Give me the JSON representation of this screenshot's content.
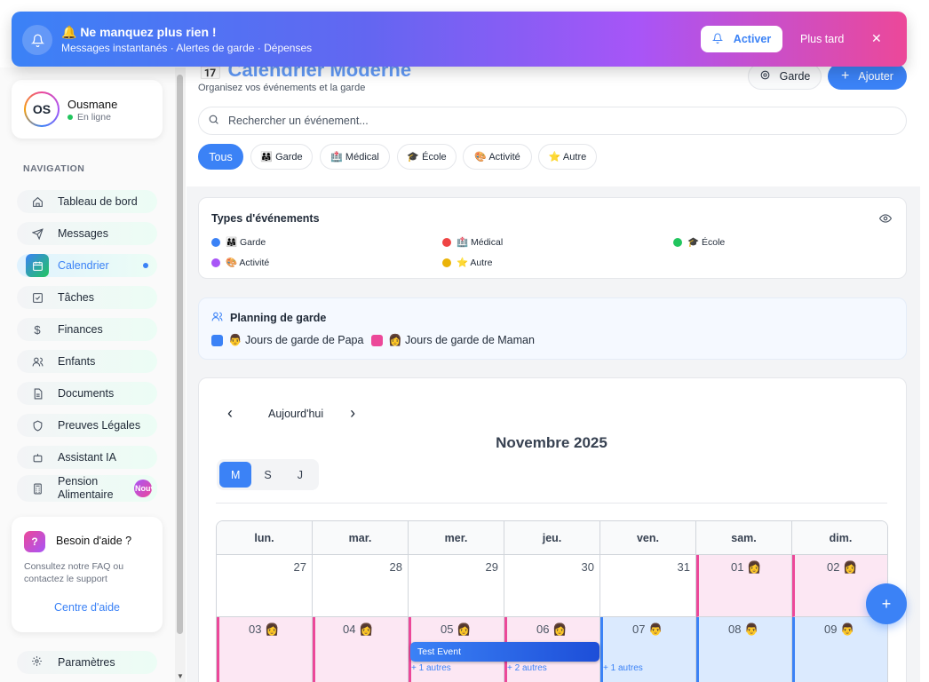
{
  "notification": {
    "title": "🔔 Ne manquez plus rien !",
    "subtitle": "Messages instantanés · Alertes de garde · Dépenses",
    "activate_label": "Activer",
    "later_label": "Plus tard",
    "close_glyph": "✕"
  },
  "profile": {
    "initials": "OS",
    "name": "Ousmane",
    "status": "En ligne"
  },
  "nav": {
    "title": "NAVIGATION",
    "items": [
      {
        "label": "Tableau de bord",
        "icon": "home-icon"
      },
      {
        "label": "Messages",
        "icon": "send-icon"
      },
      {
        "label": "Calendrier",
        "icon": "calendar-icon",
        "active": true
      },
      {
        "label": "Tâches",
        "icon": "checkbox-icon"
      },
      {
        "label": "Finances",
        "icon": "dollar-icon"
      },
      {
        "label": "Enfants",
        "icon": "users-icon"
      },
      {
        "label": "Documents",
        "icon": "document-icon"
      },
      {
        "label": "Preuves Légales",
        "icon": "shield-icon"
      },
      {
        "label": "Assistant IA",
        "icon": "bot-icon"
      },
      {
        "label": "Pension Alimentaire",
        "icon": "calculator-icon",
        "badge": "Nouveau"
      }
    ]
  },
  "help": {
    "title": "Besoin d'aide ?",
    "text": "Consultez notre FAQ ou contactez le support",
    "link": "Centre d'aide"
  },
  "settings_label": "Paramètres",
  "header": {
    "title": "📅 Calendrier Moderne",
    "subtitle": "Organisez vos événements et la garde",
    "garde_button": "Garde",
    "add_button": "Ajouter"
  },
  "search": {
    "placeholder": "Rechercher un événement...",
    "value": ""
  },
  "filters": [
    "Tous",
    "👨‍👩‍👧 Garde",
    "🏥 Médical",
    "🎓 École",
    "🎨 Activité",
    "⭐ Autre"
  ],
  "types": {
    "title": "Types d'événements",
    "items": [
      {
        "label": "👨‍👩‍👧 Garde",
        "color": "#3b82f6"
      },
      {
        "label": "🏥 Médical",
        "color": "#ef4444"
      },
      {
        "label": "🎓 École",
        "color": "#22c55e"
      },
      {
        "label": "🎨 Activité",
        "color": "#a855f7"
      },
      {
        "label": "⭐ Autre",
        "color": "#eab308"
      }
    ]
  },
  "planning": {
    "title": "Planning de garde",
    "items": [
      {
        "label": "👨 Jours de garde de Papa",
        "color": "#3b82f6"
      },
      {
        "label": "👩 Jours de garde de Maman",
        "color": "#ec4899"
      }
    ]
  },
  "calendar": {
    "prev": "‹",
    "today_label": "Aujourd'hui",
    "next": "›",
    "month_label": "Novembre 2025",
    "views": [
      "M",
      "S",
      "J"
    ],
    "active_view": "M",
    "weekdays": [
      "lun.",
      "mar.",
      "mer.",
      "jeu.",
      "ven.",
      "sam.",
      "dim."
    ],
    "weeks": [
      [
        {
          "day": "27",
          "type": "none"
        },
        {
          "day": "28",
          "type": "none"
        },
        {
          "day": "29",
          "type": "none"
        },
        {
          "day": "30",
          "type": "none"
        },
        {
          "day": "31",
          "type": "none"
        },
        {
          "day": "01 👩",
          "type": "maman"
        },
        {
          "day": "02 👩",
          "type": "maman"
        }
      ],
      [
        {
          "day": "03 👩",
          "type": "maman"
        },
        {
          "day": "04 👩",
          "type": "maman"
        },
        {
          "day": "05 👩",
          "type": "maman",
          "more": "+ 1 autres"
        },
        {
          "day": "06 👩",
          "type": "maman",
          "more": "+ 2 autres"
        },
        {
          "day": "07 👨",
          "type": "papa",
          "more": "+ 1 autres"
        },
        {
          "day": "08 👨",
          "type": "papa"
        },
        {
          "day": "09 👨",
          "type": "papa"
        }
      ]
    ],
    "event": "Test Event"
  },
  "fab": "+"
}
